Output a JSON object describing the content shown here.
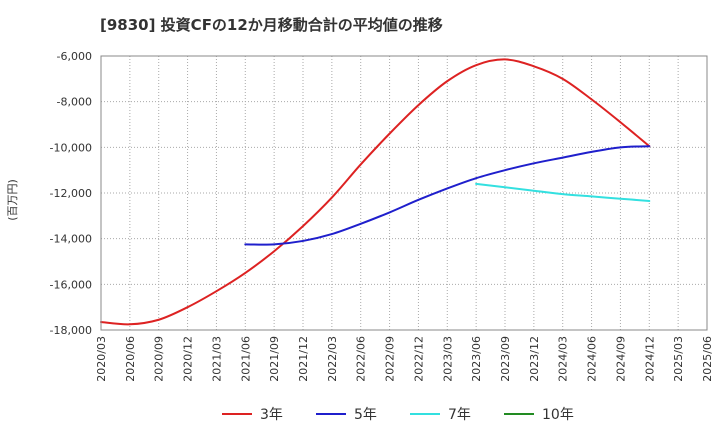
{
  "chart_data": {
    "type": "line",
    "title": "[9830]  投資CFの12か月移動合計の平均値の推移",
    "ylabel": "(百万円)",
    "xlabel": "",
    "ylim": [
      -18000,
      -6000
    ],
    "yticks": [
      -6000,
      -8000,
      -10000,
      -12000,
      -14000,
      -16000,
      -18000
    ],
    "ytick_labels": [
      "-6,000",
      "-8,000",
      "-10,000",
      "-12,000",
      "-14,000",
      "-16,000",
      "-18,000"
    ],
    "xticks": [
      "2020/03",
      "2020/06",
      "2020/09",
      "2020/12",
      "2021/03",
      "2021/06",
      "2021/09",
      "2021/12",
      "2022/03",
      "2022/06",
      "2022/09",
      "2022/12",
      "2023/03",
      "2023/06",
      "2023/09",
      "2023/12",
      "2024/03",
      "2024/06",
      "2024/09",
      "2024/12",
      "2025/03",
      "2025/06"
    ],
    "grid": true,
    "legend_position": "bottom",
    "series": [
      {
        "name": "3年",
        "color": "#dd2222",
        "x": [
          "2020/03",
          "2020/06",
          "2020/09",
          "2020/12",
          "2021/03",
          "2021/06",
          "2021/09",
          "2021/12",
          "2022/03",
          "2022/06",
          "2022/09",
          "2022/12",
          "2023/03",
          "2023/06",
          "2023/09",
          "2023/12",
          "2024/03",
          "2024/06",
          "2024/09",
          "2024/12"
        ],
        "values": [
          -17650,
          -17750,
          -17550,
          -17000,
          -16300,
          -15500,
          -14550,
          -13450,
          -12200,
          -10750,
          -9400,
          -8150,
          -7100,
          -6400,
          -6150,
          -6450,
          -7000,
          -7900,
          -8900,
          -9950
        ]
      },
      {
        "name": "5年",
        "color": "#1f1fcc",
        "x": [
          "2021/06",
          "2021/09",
          "2021/12",
          "2022/03",
          "2022/06",
          "2022/09",
          "2022/12",
          "2023/03",
          "2023/06",
          "2023/09",
          "2023/12",
          "2024/03",
          "2024/06",
          "2024/09",
          "2024/12"
        ],
        "values": [
          -14250,
          -14250,
          -14100,
          -13800,
          -13350,
          -12850,
          -12300,
          -11800,
          -11350,
          -11000,
          -10700,
          -10450,
          -10200,
          -10000,
          -9950
        ]
      },
      {
        "name": "7年",
        "color": "#33e0e0",
        "x": [
          "2023/06",
          "2023/09",
          "2023/12",
          "2024/03",
          "2024/06",
          "2024/09",
          "2024/12"
        ],
        "values": [
          -11600,
          -11750,
          -11900,
          -12050,
          -12150,
          -12250,
          -12350
        ]
      },
      {
        "name": "10年",
        "color": "#228b22",
        "x": [],
        "values": []
      }
    ]
  }
}
